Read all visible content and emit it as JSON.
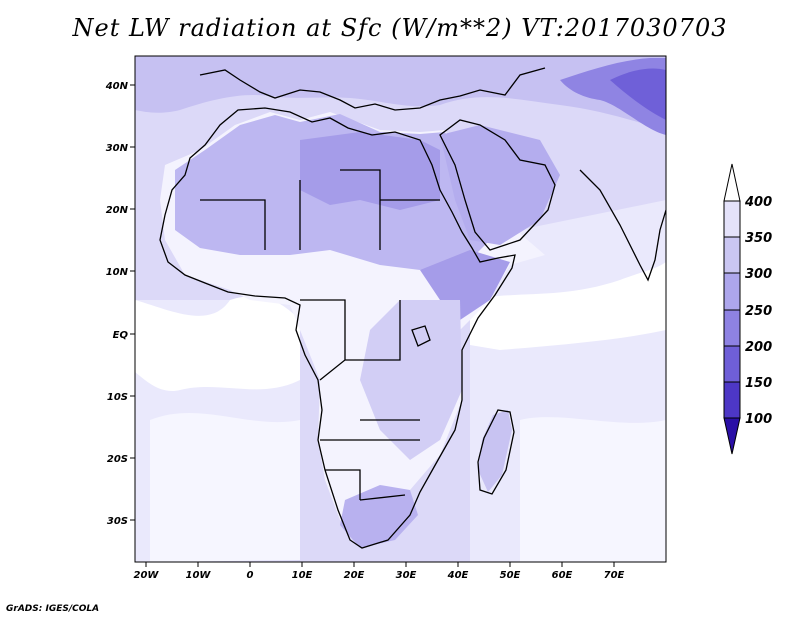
{
  "title": "Net LW radiation at Sfc (W/m**2) VT:2017030703",
  "footer": "GrADS: IGES/COLA",
  "map": {
    "region": "Africa",
    "lon_range": [
      -25,
      80
    ],
    "lat_range": [
      -37,
      45
    ],
    "lon_ticks": [
      {
        "value": -20,
        "label": "20W"
      },
      {
        "value": -10,
        "label": "10W"
      },
      {
        "value": 0,
        "label": "0"
      },
      {
        "value": 10,
        "label": "10E"
      },
      {
        "value": 20,
        "label": "20E"
      },
      {
        "value": 30,
        "label": "30E"
      },
      {
        "value": 40,
        "label": "40E"
      },
      {
        "value": 50,
        "label": "50E"
      },
      {
        "value": 60,
        "label": "60E"
      },
      {
        "value": 70,
        "label": "70E"
      }
    ],
    "lat_ticks": [
      {
        "value": 40,
        "label": "40N"
      },
      {
        "value": 30,
        "label": "30N"
      },
      {
        "value": 20,
        "label": "20N"
      },
      {
        "value": 10,
        "label": "10N"
      },
      {
        "value": 0,
        "label": "EQ"
      },
      {
        "value": -10,
        "label": "10S"
      },
      {
        "value": -20,
        "label": "20S"
      },
      {
        "value": -30,
        "label": "30S"
      }
    ]
  },
  "colorbar": {
    "levels": [
      "400",
      "350",
      "300",
      "250",
      "200",
      "150",
      "100"
    ],
    "colors": [
      "#e4e2fa",
      "#cac6f2",
      "#ada6ec",
      "#8e82e3",
      "#6f5fd8",
      "#4d37c6",
      "#2a0fa6"
    ],
    "top_arrow_color": "#ffffff",
    "bottom_arrow_color": "#2a0fa6"
  },
  "colors": {
    "ocean_light": "#e9e8fc",
    "land_low": "#ffffff",
    "level_350": "#d6d3f6",
    "level_300": "#bcb7f1",
    "level_250": "#a39be9",
    "level_200": "#8a7fe2",
    "level_150": "#6c5fd6"
  }
}
